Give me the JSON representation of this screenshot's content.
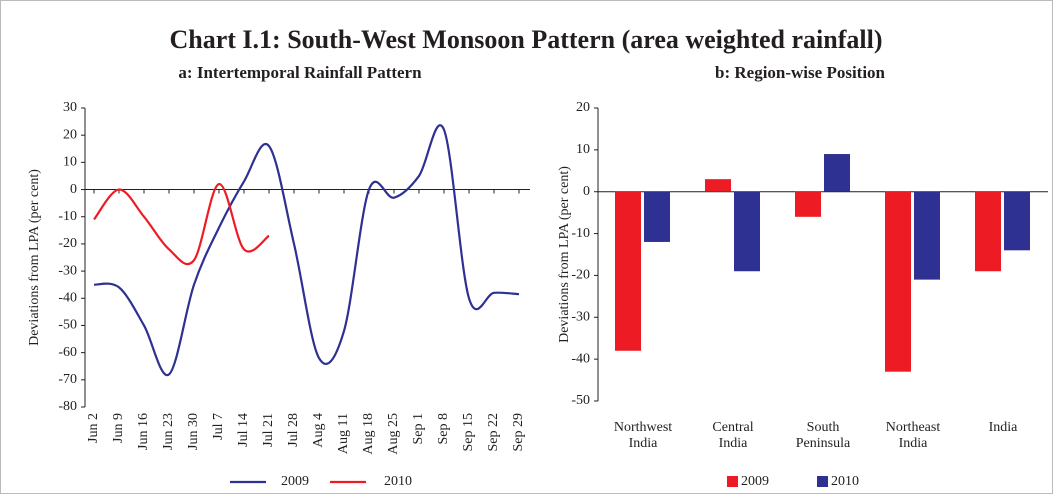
{
  "title": "Chart I.1: South-West Monsoon Pattern (area weighted rainfall)",
  "chart_data": [
    {
      "type": "line",
      "title": "a: Intertemporal Rainfall Pattern",
      "y_label": "Deviations from LPA (per cent)",
      "categories": [
        "Jun 2",
        "Jun 9",
        "Jun 16",
        "Jun 23",
        "Jun 30",
        "Jul 7",
        "Jul 14",
        "Jul 21",
        "Jul 28",
        "Aug 4",
        "Aug 11",
        "Aug 18",
        "Aug 25",
        "Sep 1",
        "Sep 8",
        "Sep 15",
        "Sep 22",
        "Sep 29"
      ],
      "series": [
        {
          "name": "2009",
          "color": "#2e3192",
          "values": [
            -35,
            -36,
            -50,
            -68,
            -35,
            -14,
            3,
            16,
            -20,
            -62,
            -52,
            0,
            -3,
            5,
            22,
            -40,
            -38,
            -38.5
          ]
        },
        {
          "name": "2010",
          "color": "#ed1c24",
          "values": [
            -11,
            0,
            -10,
            -22,
            -26,
            2,
            -22,
            -17,
            null,
            null,
            null,
            null,
            null,
            null,
            null,
            null,
            null,
            null
          ]
        }
      ],
      "ylim": [
        -80,
        30
      ],
      "yticks": [
        -80,
        -70,
        -60,
        -50,
        -40,
        -30,
        -20,
        -10,
        0,
        10,
        20,
        30
      ],
      "legend": "bottom"
    },
    {
      "type": "bar",
      "title": "b: Region-wise Position",
      "y_label": "Deviations from LPA (per cent)",
      "categories": [
        "Northwest India",
        "Central India",
        "South Peninsula",
        "Northeast India",
        "India"
      ],
      "series": [
        {
          "name": "2009",
          "color": "#ed1c24",
          "values": [
            -38,
            3,
            -6,
            -43,
            -19
          ]
        },
        {
          "name": "2010",
          "color": "#2e3192",
          "values": [
            -12,
            -19,
            9,
            -21,
            -14
          ]
        }
      ],
      "ylim": [
        -50,
        20
      ],
      "yticks": [
        -50,
        -40,
        -30,
        -20,
        -10,
        0,
        10,
        20
      ],
      "legend": "bottom"
    }
  ]
}
